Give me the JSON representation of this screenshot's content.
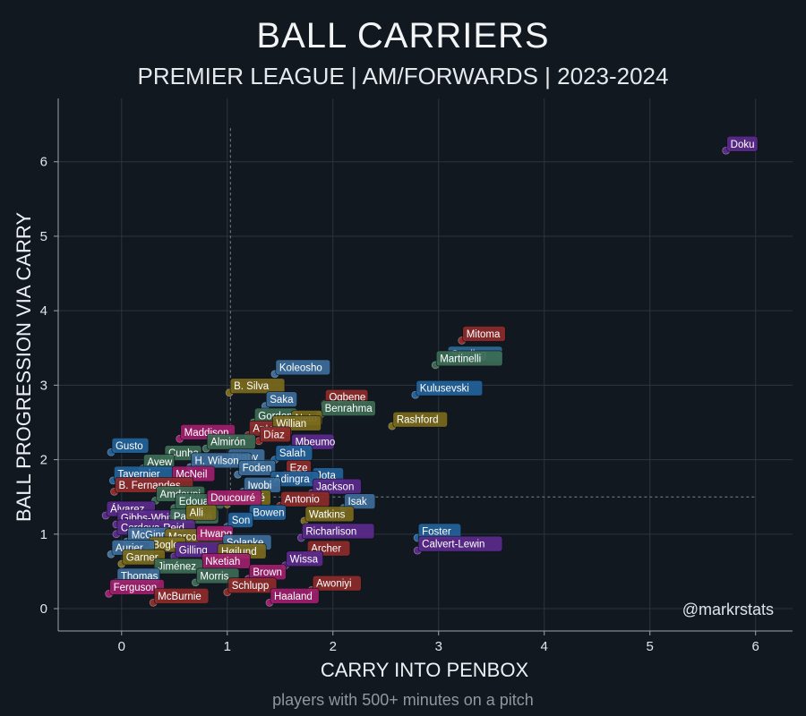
{
  "title": "BALL CARRIERS",
  "subtitle": "PREMIER LEAGUE | AM/FORWARDS | 2023-2024",
  "footnote": "players with 500+ minutes on a pitch",
  "watermark": "@markrstats",
  "chart_data": {
    "type": "scatter",
    "xlabel": "CARRY INTO PENBOX",
    "ylabel": "BALL PROGRESSION VIA CARRY",
    "xlim": [
      -0.6,
      6.35
    ],
    "ylim": [
      -0.3,
      6.85
    ],
    "xticks": [
      0,
      1,
      2,
      3,
      4,
      5,
      6
    ],
    "yticks": [
      0,
      1,
      2,
      3,
      4,
      5,
      6
    ],
    "grid": true,
    "reference_lines": {
      "x": 1.03,
      "y": 1.5
    },
    "colors": {
      "background": "#111820",
      "grid": "#2b3540",
      "axis": "#9aa3ab"
    },
    "points": [
      {
        "name": "Doku",
        "x": 5.72,
        "y": 6.15,
        "color": "#5b2a8c"
      },
      {
        "name": "Mitoma",
        "x": 3.22,
        "y": 3.6,
        "color": "#8e2b2b"
      },
      {
        "name": "Sterling",
        "x": 3.08,
        "y": 3.33,
        "color": "#2e6a99"
      },
      {
        "name": "Martinelli",
        "x": 2.97,
        "y": 3.27,
        "color": "#3c6b55"
      },
      {
        "name": "Koleosho",
        "x": 1.45,
        "y": 3.15,
        "color": "#3d6e9a"
      },
      {
        "name": "Kulusevski",
        "x": 2.78,
        "y": 2.87,
        "color": "#23639b"
      },
      {
        "name": "B. Silva",
        "x": 1.02,
        "y": 2.9,
        "color": "#7a6a1c"
      },
      {
        "name": "Saka",
        "x": 1.36,
        "y": 2.72,
        "color": "#3d6e9a"
      },
      {
        "name": "Ogbene",
        "x": 1.92,
        "y": 2.75,
        "color": "#8e2b2b"
      },
      {
        "name": "Benrahma",
        "x": 1.88,
        "y": 2.6,
        "color": "#3c6b55"
      },
      {
        "name": "Rashford",
        "x": 2.56,
        "y": 2.45,
        "color": "#7a6a1c"
      },
      {
        "name": "Gordon",
        "x": 1.25,
        "y": 2.5,
        "color": "#3c6b55"
      },
      {
        "name": "Neto",
        "x": 1.6,
        "y": 2.47,
        "color": "#7a6a1c"
      },
      {
        "name": "Antony",
        "x": 1.2,
        "y": 2.33,
        "color": "#8e2b2b"
      },
      {
        "name": "Willian",
        "x": 1.42,
        "y": 2.4,
        "color": "#7a6a1c"
      },
      {
        "name": "Díaz",
        "x": 1.3,
        "y": 2.25,
        "color": "#8e2b2b"
      },
      {
        "name": "Mbeumo",
        "x": 1.6,
        "y": 2.15,
        "color": "#5b2a8c"
      },
      {
        "name": "Maddison",
        "x": 0.55,
        "y": 2.28,
        "color": "#a01f6c"
      },
      {
        "name": "Almirón",
        "x": 0.8,
        "y": 2.15,
        "color": "#3c6b55"
      },
      {
        "name": "Gusto",
        "x": -0.1,
        "y": 2.1,
        "color": "#23639b"
      },
      {
        "name": "Cunha",
        "x": 0.4,
        "y": 2.0,
        "color": "#3c6b55"
      },
      {
        "name": "Salah",
        "x": 1.45,
        "y": 2.0,
        "color": "#23639b"
      },
      {
        "name": "Diaby",
        "x": 1.0,
        "y": 1.95,
        "color": "#3d6e9a"
      },
      {
        "name": "Ayew",
        "x": 0.2,
        "y": 1.88,
        "color": "#3c6b55"
      },
      {
        "name": "H. Wilson",
        "x": 0.65,
        "y": 1.9,
        "color": "#3d6e9a"
      },
      {
        "name": "Foden",
        "x": 1.1,
        "y": 1.8,
        "color": "#3d6e9a"
      },
      {
        "name": "Tavernier",
        "x": -0.08,
        "y": 1.72,
        "color": "#23639b"
      },
      {
        "name": "McNeil",
        "x": 0.47,
        "y": 1.72,
        "color": "#a01f6c"
      },
      {
        "name": "Eze",
        "x": 1.55,
        "y": 1.8,
        "color": "#8e2b2b"
      },
      {
        "name": "Jota",
        "x": 1.8,
        "y": 1.7,
        "color": "#23639b"
      },
      {
        "name": "Adingra",
        "x": 1.4,
        "y": 1.65,
        "color": "#23639b"
      },
      {
        "name": "Iwobi",
        "x": 1.15,
        "y": 1.57,
        "color": "#3d6e9a"
      },
      {
        "name": "B. Fernandes",
        "x": -0.07,
        "y": 1.57,
        "color": "#8e2b2b"
      },
      {
        "name": "Jackson",
        "x": 1.8,
        "y": 1.55,
        "color": "#5b2a8c"
      },
      {
        "name": "Amdouni",
        "x": 0.32,
        "y": 1.45,
        "color": "#3c6b55"
      },
      {
        "name": "Kaboré",
        "x": 1.0,
        "y": 1.4,
        "color": "#7a6a1c"
      },
      {
        "name": "Antonio",
        "x": 1.5,
        "y": 1.38,
        "color": "#8e2b2b"
      },
      {
        "name": "Isak",
        "x": 2.1,
        "y": 1.35,
        "color": "#3d6e9a"
      },
      {
        "name": "Edouard",
        "x": 0.5,
        "y": 1.35,
        "color": "#3c6b55"
      },
      {
        "name": "Álvarez",
        "x": -0.15,
        "y": 1.25,
        "color": "#5b2a8c"
      },
      {
        "name": "Doucouré",
        "x": 0.8,
        "y": 1.4,
        "color": "#a01f6c"
      },
      {
        "name": "Bowen",
        "x": 1.2,
        "y": 1.2,
        "color": "#23639b"
      },
      {
        "name": "Watkins",
        "x": 1.73,
        "y": 1.18,
        "color": "#7a6a1c"
      },
      {
        "name": "Gibbs-White",
        "x": -0.05,
        "y": 1.13,
        "color": "#5b2a8c"
      },
      {
        "name": "Paquetá",
        "x": 0.45,
        "y": 1.15,
        "color": "#3c6b55"
      },
      {
        "name": "Alli",
        "x": 0.6,
        "y": 1.2,
        "color": "#7a6a1c"
      },
      {
        "name": "Son",
        "x": 1.0,
        "y": 1.1,
        "color": "#23639b"
      },
      {
        "name": "Cordova-Reid",
        "x": -0.05,
        "y": 1.0,
        "color": "#5b2a8c"
      },
      {
        "name": "Richarlison",
        "x": 1.7,
        "y": 0.95,
        "color": "#5b2a8c"
      },
      {
        "name": "Foster",
        "x": 2.8,
        "y": 0.95,
        "color": "#23639b"
      },
      {
        "name": "McGinn",
        "x": 0.05,
        "y": 0.9,
        "color": "#3d6e9a"
      },
      {
        "name": "Marcondes",
        "x": 0.4,
        "y": 0.88,
        "color": "#7a6a1c"
      },
      {
        "name": "Hwang",
        "x": 0.7,
        "y": 0.92,
        "color": "#a01f6c"
      },
      {
        "name": "Calvert-Lewin",
        "x": 2.8,
        "y": 0.78,
        "color": "#5b2a8c"
      },
      {
        "name": "Solanke",
        "x": 0.95,
        "y": 0.8,
        "color": "#3d6e9a"
      },
      {
        "name": "Bogle",
        "x": 0.25,
        "y": 0.77,
        "color": "#7a6a1c"
      },
      {
        "name": "Aurier",
        "x": -0.1,
        "y": 0.73,
        "color": "#3d6e9a"
      },
      {
        "name": "Archer",
        "x": 1.75,
        "y": 0.72,
        "color": "#8e2b2b"
      },
      {
        "name": "Gilling",
        "x": 0.5,
        "y": 0.7,
        "color": "#5b2a8c"
      },
      {
        "name": "Højlund",
        "x": 0.9,
        "y": 0.68,
        "color": "#7a6a1c"
      },
      {
        "name": "Garner",
        "x": 0.0,
        "y": 0.6,
        "color": "#7a6a1c"
      },
      {
        "name": "Wissa",
        "x": 1.55,
        "y": 0.58,
        "color": "#5b2a8c"
      },
      {
        "name": "Nketiah",
        "x": 0.75,
        "y": 0.55,
        "color": "#a01f6c"
      },
      {
        "name": "Jiménez",
        "x": 0.3,
        "y": 0.48,
        "color": "#3c6b55"
      },
      {
        "name": "Brown",
        "x": 1.2,
        "y": 0.4,
        "color": "#a01f6c"
      },
      {
        "name": "Morris",
        "x": 0.7,
        "y": 0.35,
        "color": "#3c6b55"
      },
      {
        "name": "Thomas",
        "x": -0.05,
        "y": 0.35,
        "color": "#3d6e9a"
      },
      {
        "name": "Awoniyi",
        "x": 1.8,
        "y": 0.25,
        "color": "#8e2b2b"
      },
      {
        "name": "Schlupp",
        "x": 1.0,
        "y": 0.22,
        "color": "#8e2b2b"
      },
      {
        "name": "Ferguson",
        "x": -0.12,
        "y": 0.2,
        "color": "#a01f6c"
      },
      {
        "name": "McBurnie",
        "x": 0.3,
        "y": 0.08,
        "color": "#8e2b2b"
      },
      {
        "name": "Haaland",
        "x": 1.4,
        "y": 0.08,
        "color": "#a01f6c"
      }
    ]
  }
}
